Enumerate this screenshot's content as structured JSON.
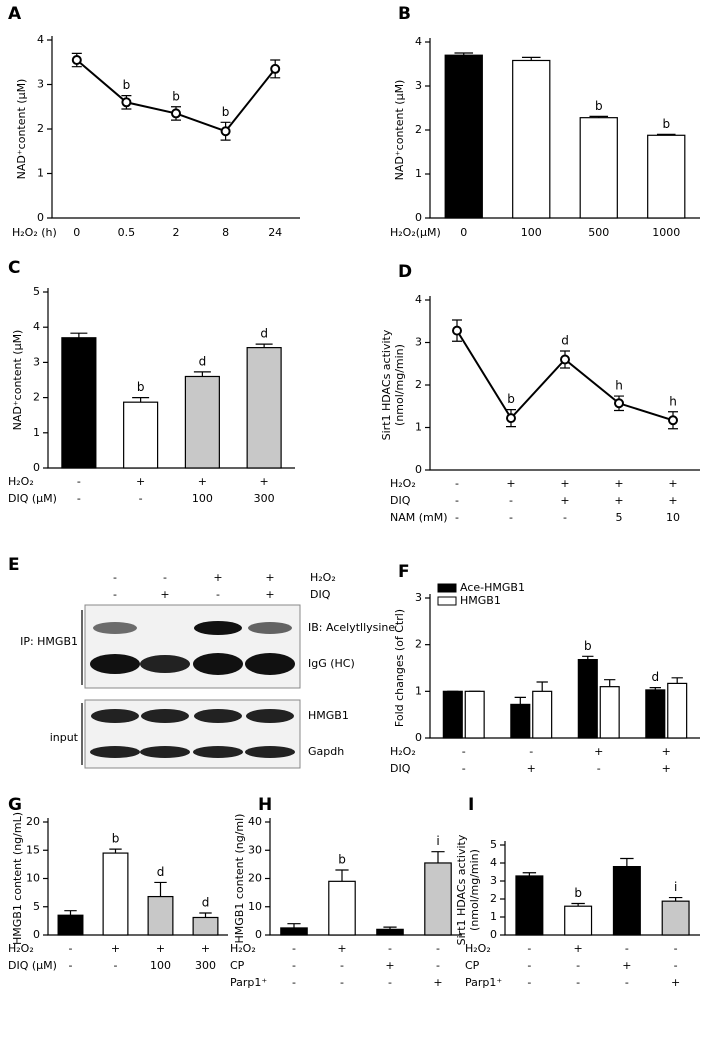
{
  "chart_data": [
    {
      "type": "line",
      "label": "A",
      "ylabel": [
        "NAD⁺content (μM)"
      ],
      "xlabel": "H₂O₂ (h)",
      "categories": [
        "0",
        "0.5",
        "2",
        "8",
        "24"
      ],
      "values": [
        3.55,
        2.6,
        2.35,
        1.95,
        3.35
      ],
      "errors": [
        0.15,
        0.15,
        0.15,
        0.2,
        0.2
      ],
      "annotations": [
        null,
        "b",
        "b",
        "b",
        null
      ],
      "color": "#000000",
      "ylim": [
        0,
        4
      ],
      "yticks": [
        0,
        1,
        2,
        3,
        4
      ]
    },
    {
      "type": "bar",
      "label": "B",
      "ylabel": [
        "NAD⁺content (μM)"
      ],
      "xlabel": "H₂O₂(μM)",
      "categories": [
        "0",
        "100",
        "500",
        "1000"
      ],
      "values": [
        3.7,
        3.58,
        2.28,
        1.88
      ],
      "errors": [
        0.05,
        0.07,
        0.03,
        0.02
      ],
      "colors": [
        "#000000",
        "#ffffff",
        "#ffffff",
        "#ffffff"
      ],
      "annotations": [
        null,
        null,
        "b",
        "b"
      ],
      "ylim": [
        0,
        4
      ],
      "yticks": [
        0,
        1,
        2,
        3,
        4
      ]
    },
    {
      "type": "bar",
      "label": "C",
      "ylabel": [
        "NAD⁺content (μM)"
      ],
      "conditions": [
        {
          "label": "H₂O₂",
          "values": [
            "-",
            "+",
            "+",
            "+"
          ]
        },
        {
          "label": "DIQ (μM)",
          "values": [
            "-",
            "-",
            "100",
            "300"
          ]
        }
      ],
      "values": [
        3.7,
        1.87,
        2.6,
        3.42
      ],
      "errors": [
        0.13,
        0.13,
        0.13,
        0.1
      ],
      "colors": [
        "#000000",
        "#ffffff",
        "#c8c8c8",
        "#c8c8c8"
      ],
      "annotations": [
        null,
        "b",
        "d",
        "d"
      ],
      "ylim": [
        0,
        5
      ],
      "yticks": [
        0,
        1,
        2,
        3,
        4,
        5
      ]
    },
    {
      "type": "line",
      "label": "D",
      "ylabel": [
        "Sirt1 HDACs activity",
        "(nmol/mg/min)"
      ],
      "conditions": [
        {
          "label": "H₂O₂",
          "values": [
            "-",
            "+",
            "+",
            "+",
            "+"
          ]
        },
        {
          "label": "DIQ",
          "values": [
            "-",
            "-",
            "+",
            "+",
            "+"
          ]
        },
        {
          "label": "NAM (mM)",
          "values": [
            "-",
            "-",
            "-",
            "5",
            "10"
          ]
        }
      ],
      "values": [
        3.28,
        1.22,
        2.6,
        1.57,
        1.17
      ],
      "errors": [
        0.25,
        0.2,
        0.2,
        0.17,
        0.2
      ],
      "annotations": [
        null,
        "b",
        "d",
        "h",
        "h"
      ],
      "color": "#000000",
      "ylim": [
        0,
        4
      ],
      "yticks": [
        0,
        1,
        2,
        3,
        4
      ]
    },
    {
      "type": "blot",
      "label": "E",
      "conditions": [
        {
          "label": "H₂O₂",
          "values": [
            "-",
            "-",
            "+",
            "+"
          ]
        },
        {
          "label": "DIQ",
          "values": [
            "-",
            "+",
            "-",
            "+"
          ]
        }
      ],
      "row_labels": [
        "IB: Acelytllysine",
        "IgG (HC)",
        "HMGB1",
        "Gapdh"
      ],
      "group_labels": [
        "IP: HMGB1",
        "input"
      ]
    },
    {
      "type": "grouped-bar",
      "label": "F",
      "ylabel": [
        "Fold changes (of Ctrl)"
      ],
      "legend": "top-left",
      "conditions": [
        {
          "label": "H₂O₂",
          "values": [
            "-",
            "-",
            "+",
            "+"
          ]
        },
        {
          "label": "DIQ",
          "values": [
            "-",
            "+",
            "-",
            "+"
          ]
        }
      ],
      "series": [
        {
          "name": "Ace-HMGB1",
          "color": "#000000",
          "values": [
            1,
            0.72,
            1.68,
            1.03
          ],
          "errors": [
            0,
            0.15,
            0.07,
            0.05
          ],
          "annotations": [
            null,
            null,
            "b",
            "d"
          ]
        },
        {
          "name": "HMGB1",
          "color": "#ffffff",
          "values": [
            1,
            1,
            1.1,
            1.17
          ],
          "errors": [
            0,
            0.2,
            0.15,
            0.12
          ]
        }
      ],
      "ylim": [
        0,
        3
      ],
      "yticks": [
        0,
        1,
        2,
        3
      ]
    },
    {
      "type": "bar",
      "label": "G",
      "ylabel": [
        "HMGB1 content (ng/mL)"
      ],
      "conditions": [
        {
          "label": "H₂O₂",
          "values": [
            "-",
            "+",
            "+",
            "+"
          ]
        },
        {
          "label": "DIQ (μM)",
          "values": [
            "-",
            "-",
            "100",
            "300"
          ]
        }
      ],
      "values": [
        3.5,
        14.5,
        6.8,
        3.1
      ],
      "errors": [
        0.8,
        0.7,
        2.5,
        0.8
      ],
      "colors": [
        "#000000",
        "#ffffff",
        "#c8c8c8",
        "#c8c8c8"
      ],
      "annotations": [
        null,
        "b",
        "d",
        "d"
      ],
      "ylim": [
        0,
        20
      ],
      "yticks": [
        0,
        5,
        10,
        15,
        20
      ]
    },
    {
      "type": "bar",
      "label": "H",
      "ylabel": [
        "HMGB1 content (ng/ml)"
      ],
      "conditions": [
        {
          "label": "H₂O₂",
          "values": [
            "-",
            "+",
            "-",
            "-"
          ]
        },
        {
          "label": "CP",
          "values": [
            "-",
            "-",
            "+",
            "-"
          ]
        },
        {
          "label": "Parp1⁺",
          "values": [
            "-",
            "-",
            "-",
            "+"
          ]
        }
      ],
      "values": [
        2.5,
        19,
        2,
        25.5
      ],
      "errors": [
        1.5,
        4,
        0.8,
        4
      ],
      "colors": [
        "#000000",
        "#ffffff",
        "#000000",
        "#c8c8c8"
      ],
      "annotations": [
        null,
        "b",
        null,
        "i"
      ],
      "ylim": [
        0,
        40
      ],
      "yticks": [
        0,
        10,
        20,
        30,
        40
      ]
    },
    {
      "type": "bar",
      "label": "I",
      "ylabel": [
        "Sirt1 HDACs activity",
        "(nmol/mg/min)"
      ],
      "conditions": [
        {
          "label": "H₂O₂",
          "values": [
            "-",
            "+",
            "-",
            "-"
          ]
        },
        {
          "label": "CP",
          "values": [
            "-",
            "-",
            "+",
            "-"
          ]
        },
        {
          "label": "Parp1⁺",
          "values": [
            "-",
            "-",
            "-",
            "+"
          ]
        }
      ],
      "values": [
        3.28,
        1.6,
        3.8,
        1.88
      ],
      "errors": [
        0.18,
        0.15,
        0.45,
        0.2
      ],
      "colors": [
        "#000000",
        "#ffffff",
        "#000000",
        "#c8c8c8"
      ],
      "annotations": [
        null,
        "b",
        null,
        "i"
      ],
      "ylim": [
        0,
        5
      ],
      "yticks": [
        0,
        1,
        2,
        3,
        4,
        5
      ]
    }
  ]
}
